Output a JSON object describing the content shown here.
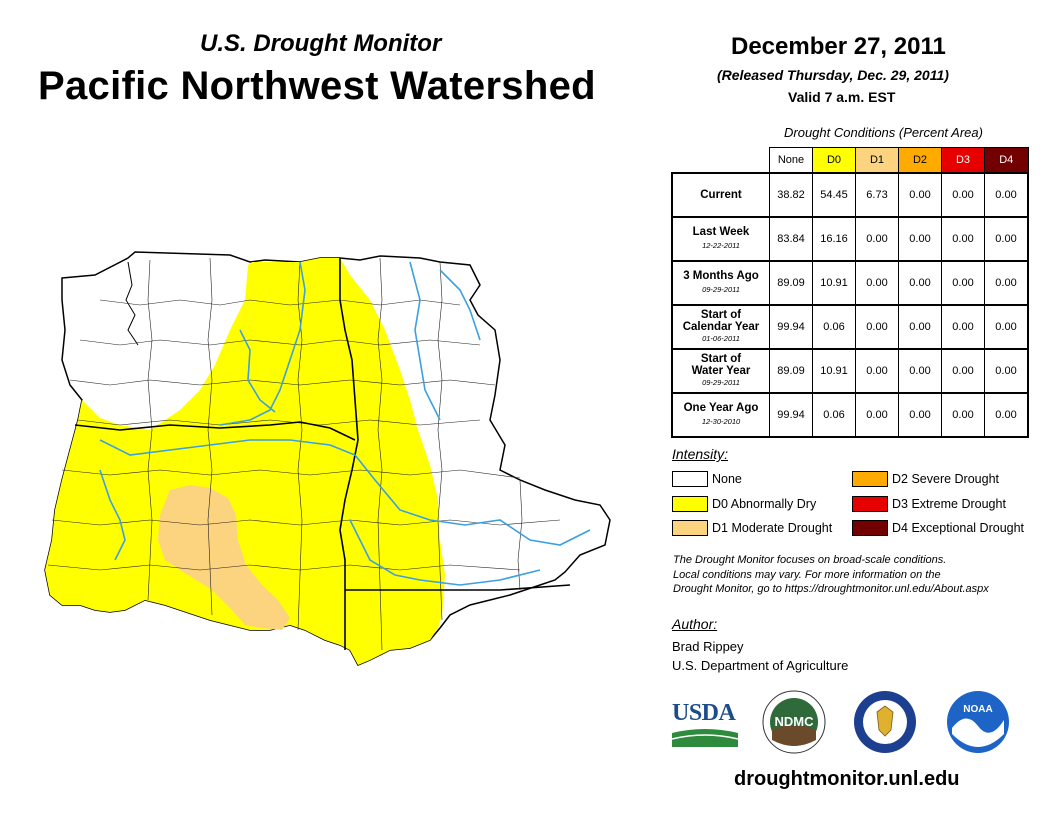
{
  "header": {
    "title_top": "U.S. Drought Monitor",
    "title_main": "Pacific Northwest Watershed",
    "date": "December 27, 2011",
    "released": "(Released Thursday, Dec. 29, 2011)",
    "valid": "Valid 7 a.m. EST"
  },
  "table": {
    "caption": "Drought Conditions (Percent Area)",
    "columns": [
      "None",
      "D0",
      "D1",
      "D2",
      "D3",
      "D4"
    ],
    "column_colors": [
      "#ffffff",
      "#ffff00",
      "#fcd37f",
      "#ffaa00",
      "#e60000",
      "#730000"
    ],
    "rows": [
      {
        "label_1": "Current",
        "label_2": "",
        "date": "",
        "values": [
          "38.82",
          "54.45",
          "6.73",
          "0.00",
          "0.00",
          "0.00"
        ]
      },
      {
        "label_1": "Last Week",
        "label_2": "",
        "date": "12-22-2011",
        "values": [
          "83.84",
          "16.16",
          "0.00",
          "0.00",
          "0.00",
          "0.00"
        ]
      },
      {
        "label_1": "3 Months Ago",
        "label_2": "",
        "date": "09-29-2011",
        "values": [
          "89.09",
          "10.91",
          "0.00",
          "0.00",
          "0.00",
          "0.00"
        ]
      },
      {
        "label_1": "Start of",
        "label_2": "Calendar Year",
        "date": "01-06-2011",
        "values": [
          "99.94",
          "0.06",
          "0.00",
          "0.00",
          "0.00",
          "0.00"
        ]
      },
      {
        "label_1": "Start of",
        "label_2": "Water Year",
        "date": "09-29-2011",
        "values": [
          "89.09",
          "10.91",
          "0.00",
          "0.00",
          "0.00",
          "0.00"
        ]
      },
      {
        "label_1": "One Year Ago",
        "label_2": "",
        "date": "12-30-2010",
        "values": [
          "99.94",
          "0.06",
          "0.00",
          "0.00",
          "0.00",
          "0.00"
        ]
      }
    ]
  },
  "legend": {
    "heading": "Intensity:",
    "items": [
      {
        "label": "None",
        "color": "#ffffff"
      },
      {
        "label": "D0 Abnormally Dry",
        "color": "#ffff00"
      },
      {
        "label": "D1 Moderate Drought",
        "color": "#fcd37f"
      },
      {
        "label": "D2 Severe Drought",
        "color": "#ffaa00"
      },
      {
        "label": "D3 Extreme Drought",
        "color": "#e60000"
      },
      {
        "label": "D4 Exceptional Drought",
        "color": "#730000"
      }
    ]
  },
  "note": {
    "line1": "The Drought Monitor focuses on broad-scale conditions.",
    "line2": "Local conditions may vary. For more information on the",
    "line3": "Drought Monitor, go to https://droughtmonitor.unl.edu/About.aspx"
  },
  "author": {
    "heading": "Author:",
    "name": "Brad Rippey",
    "org": "U.S. Department of Agriculture"
  },
  "logos": {
    "usda": "USDA",
    "ndmc": "NDMC",
    "noaa": "NOAA"
  },
  "footer": {
    "url": "droughtmonitor.unl.edu"
  },
  "map": {
    "colors": {
      "none": "#ffffff",
      "d0": "#ffff00",
      "d1": "#fcd37f",
      "river": "#3aa0e0",
      "border": "#000000"
    }
  }
}
